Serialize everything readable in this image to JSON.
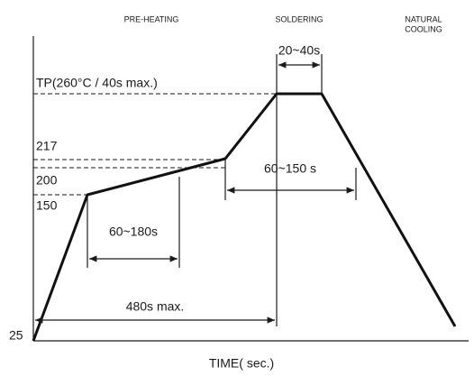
{
  "zones": [
    "PRE-HEATING",
    "SOLDERING",
    "NATURAL",
    "COOLING"
  ],
  "labels": {
    "peak": "TP(260°C / 40s max.)",
    "peak_time": "20~40s",
    "above_liquidus": "60~150 s",
    "preheat_time": "60~180s",
    "total_time": "480s max."
  },
  "temperatures": [
    "217",
    "200",
    "150",
    "25"
  ],
  "x_axis_title": "TIME( sec.)"
}
